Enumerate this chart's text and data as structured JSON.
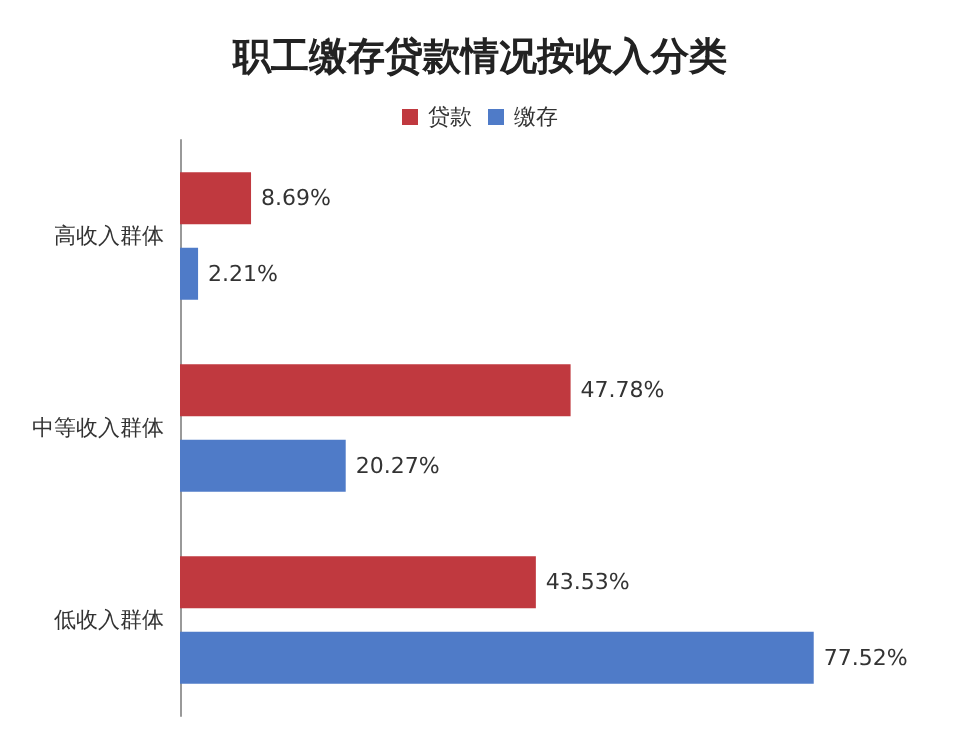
{
  "chart_data": {
    "type": "bar",
    "orientation": "horizontal",
    "title": "职工缴存贷款情况按收入分类",
    "categories": [
      "高收入群体",
      "中等收入群体",
      "低收入群体"
    ],
    "series": [
      {
        "name": "贷款",
        "color": "#c0393f",
        "values": [
          8.69,
          47.78,
          43.53
        ],
        "value_labels": [
          "8.69%",
          "47.78%",
          "43.53%"
        ]
      },
      {
        "name": "缴存",
        "color": "#4f7bc8",
        "values": [
          2.21,
          20.27,
          77.52
        ],
        "value_labels": [
          "2.21%",
          "20.27%",
          "77.52%"
        ]
      }
    ],
    "legend": "top",
    "grid": false
  }
}
